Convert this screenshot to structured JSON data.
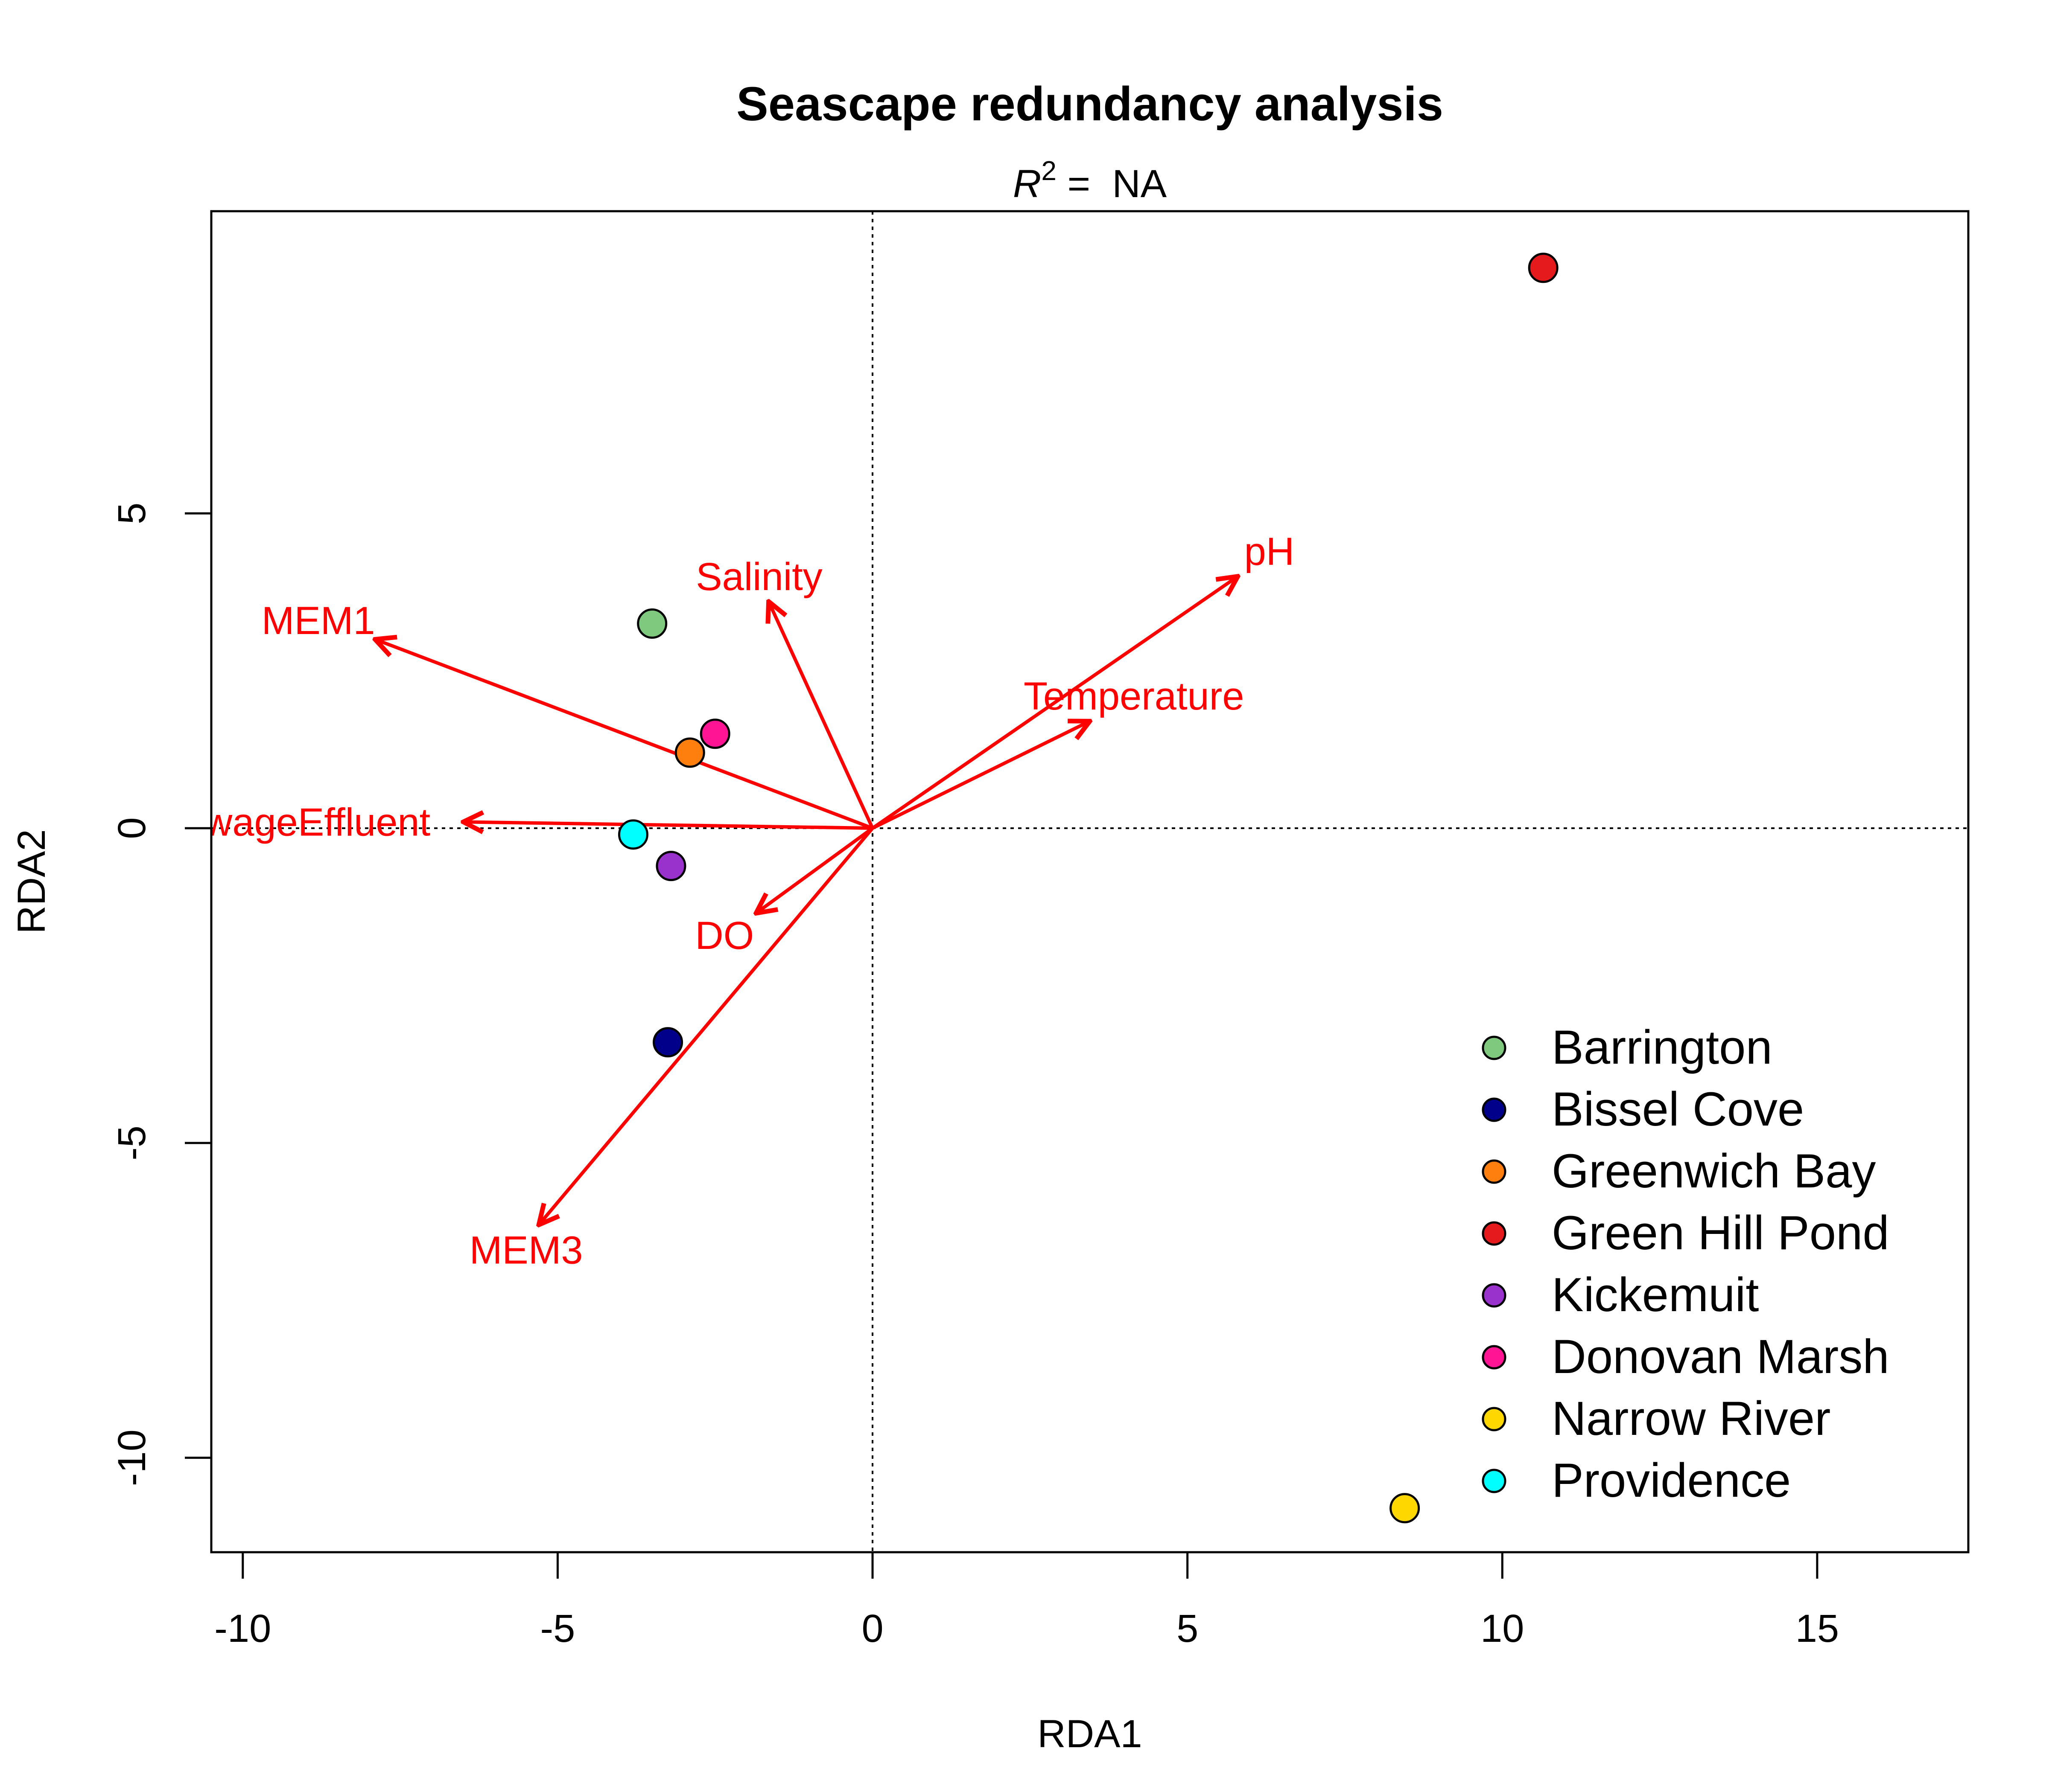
{
  "chart_data": {
    "type": "scatter",
    "title": "Seascape redundancy analysis",
    "subtitle": {
      "r_label": "R",
      "r_superscript": "2",
      "rest": " =  NA"
    },
    "xlabel": "RDA1",
    "ylabel": "RDA2",
    "xlim": [
      -10.5,
      17.4
    ],
    "ylim": [
      -11.5,
      9.8
    ],
    "x_ticks": [
      -10,
      -5,
      0,
      5,
      10,
      15
    ],
    "y_ticks": [
      -10,
      -5,
      0,
      5
    ],
    "x_tick_labels": [
      "-10",
      "-5",
      "0",
      "5",
      "10",
      "15"
    ],
    "y_tick_labels": [
      "-10",
      "-5",
      "0",
      "5"
    ],
    "reference_lines": {
      "x": 0,
      "y": 0,
      "style": "dotted"
    },
    "grid": false,
    "legend_position": "bottom-right",
    "points": [
      {
        "name": "Barrington",
        "x": -3.5,
        "y": 3.25,
        "color": "#7FC97F"
      },
      {
        "name": "Bissel Cove",
        "x": -3.25,
        "y": -3.4,
        "color": "#00008B"
      },
      {
        "name": "Greenwich Bay",
        "x": -2.9,
        "y": 1.2,
        "color": "#FF7F0E"
      },
      {
        "name": "Green Hill Pond",
        "x": 10.65,
        "y": 8.9,
        "color": "#E41A1C"
      },
      {
        "name": "Kickemuit",
        "x": -3.2,
        "y": -0.6,
        "color": "#9932CC"
      },
      {
        "name": "Donovan Marsh",
        "x": -2.5,
        "y": 1.5,
        "color": "#FF1493"
      },
      {
        "name": "Narrow River",
        "x": 8.45,
        "y": -10.8,
        "color": "#FFD700"
      },
      {
        "name": "Providence",
        "x": -3.8,
        "y": -0.1,
        "color": "#00FFFF"
      }
    ],
    "vectors": [
      {
        "label": "MEM1",
        "x": -7.9,
        "y": 3.0,
        "label_x": -8.8,
        "label_y": 3.3
      },
      {
        "label": "Salinity",
        "x": -1.65,
        "y": 3.6,
        "label_x": -1.8,
        "label_y": 4.0
      },
      {
        "label": "pH",
        "x": 5.8,
        "y": 4.0,
        "label_x": 6.3,
        "label_y": 4.4
      },
      {
        "label": "Temperature",
        "x": 3.45,
        "y": 1.7,
        "label_x": 4.15,
        "label_y": 2.1
      },
      {
        "label": "SewageEffluent",
        "x": -6.5,
        "y": 0.1,
        "label_x": -9.2,
        "label_y": 0.1
      },
      {
        "label": "DO",
        "x": -1.85,
        "y": -1.35,
        "label_x": -2.35,
        "label_y": -1.7
      },
      {
        "label": "MEM3",
        "x": -5.3,
        "y": -6.3,
        "label_x": -5.5,
        "label_y": -6.7
      }
    ],
    "vector_color": "#FF0000",
    "legend": [
      {
        "label": "Barrington",
        "color": "#7FC97F"
      },
      {
        "label": "Bissel Cove",
        "color": "#00008B"
      },
      {
        "label": "Greenwich Bay",
        "color": "#FF7F0E"
      },
      {
        "label": "Green Hill Pond",
        "color": "#E41A1C"
      },
      {
        "label": "Kickemuit",
        "color": "#9932CC"
      },
      {
        "label": "Donovan Marsh",
        "color": "#FF1493"
      },
      {
        "label": "Narrow River",
        "color": "#FFD700"
      },
      {
        "label": "Providence",
        "color": "#00FFFF"
      }
    ]
  }
}
